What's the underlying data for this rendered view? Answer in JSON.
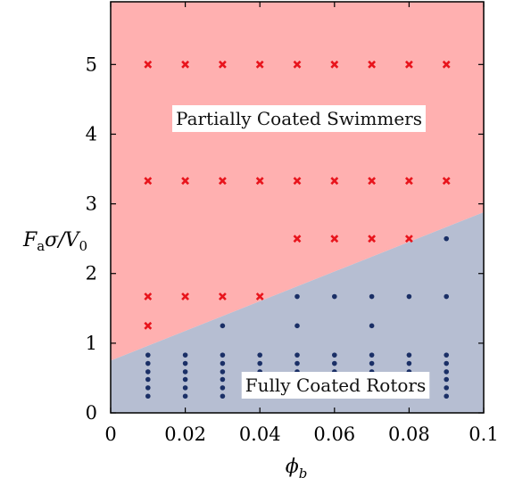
{
  "chart_data": {
    "type": "scatter",
    "title": "",
    "xlabel": "ϕb",
    "ylabel": "Faσ/V0",
    "xlim": [
      0,
      0.1
    ],
    "ylim": [
      0,
      5.9
    ],
    "xticks": [
      {
        "value": 0,
        "label": "0"
      },
      {
        "value": 0.02,
        "label": "0.02"
      },
      {
        "value": 0.04,
        "label": "0.04"
      },
      {
        "value": 0.06,
        "label": "0.06"
      },
      {
        "value": 0.08,
        "label": "0.08"
      },
      {
        "value": 0.1,
        "label": "0.1"
      }
    ],
    "yticks": [
      {
        "value": 0,
        "label": "0"
      },
      {
        "value": 1,
        "label": "1"
      },
      {
        "value": 2,
        "label": "2"
      },
      {
        "value": 3,
        "label": "3"
      },
      {
        "value": 4,
        "label": "4"
      },
      {
        "value": 5,
        "label": "5"
      }
    ],
    "boundary": {
      "x": [
        0,
        0.1
      ],
      "y": [
        0.75,
        2.88
      ]
    },
    "regions": [
      {
        "label": "Partially Coated Swimmers",
        "color": "#ffb0b0",
        "side": "above"
      },
      {
        "label": "Fully Coated Rotors",
        "color": "#b6bed2",
        "side": "below"
      }
    ],
    "series": [
      {
        "marker": "x",
        "color": "#e8141c",
        "points": [
          [
            0.01,
            5.0
          ],
          [
            0.02,
            5.0
          ],
          [
            0.03,
            5.0
          ],
          [
            0.04,
            5.0
          ],
          [
            0.05,
            5.0
          ],
          [
            0.06,
            5.0
          ],
          [
            0.07,
            5.0
          ],
          [
            0.08,
            5.0
          ],
          [
            0.09,
            5.0
          ],
          [
            0.01,
            3.33
          ],
          [
            0.02,
            3.33
          ],
          [
            0.03,
            3.33
          ],
          [
            0.04,
            3.33
          ],
          [
            0.05,
            3.33
          ],
          [
            0.06,
            3.33
          ],
          [
            0.07,
            3.33
          ],
          [
            0.08,
            3.33
          ],
          [
            0.09,
            3.33
          ],
          [
            0.05,
            2.5
          ],
          [
            0.06,
            2.5
          ],
          [
            0.07,
            2.5
          ],
          [
            0.08,
            2.5
          ],
          [
            0.01,
            1.67
          ],
          [
            0.02,
            1.67
          ],
          [
            0.03,
            1.67
          ],
          [
            0.04,
            1.67
          ],
          [
            0.01,
            1.25
          ]
        ]
      },
      {
        "marker": "dot",
        "color": "#1a2f66",
        "points": [
          [
            0.09,
            2.5
          ],
          [
            0.05,
            1.67
          ],
          [
            0.06,
            1.67
          ],
          [
            0.07,
            1.67
          ],
          [
            0.08,
            1.67
          ],
          [
            0.09,
            1.67
          ],
          [
            0.03,
            1.25
          ],
          [
            0.05,
            1.25
          ],
          [
            0.07,
            1.25
          ],
          [
            0.01,
            0.83
          ],
          [
            0.01,
            0.71
          ],
          [
            0.01,
            0.59
          ],
          [
            0.01,
            0.48
          ],
          [
            0.01,
            0.36
          ],
          [
            0.01,
            0.24
          ],
          [
            0.02,
            0.83
          ],
          [
            0.02,
            0.71
          ],
          [
            0.02,
            0.59
          ],
          [
            0.02,
            0.48
          ],
          [
            0.02,
            0.36
          ],
          [
            0.02,
            0.24
          ],
          [
            0.03,
            0.83
          ],
          [
            0.03,
            0.71
          ],
          [
            0.03,
            0.59
          ],
          [
            0.03,
            0.48
          ],
          [
            0.03,
            0.36
          ],
          [
            0.03,
            0.24
          ],
          [
            0.04,
            0.83
          ],
          [
            0.04,
            0.71
          ],
          [
            0.04,
            0.59
          ],
          [
            0.04,
            0.48
          ],
          [
            0.04,
            0.36
          ],
          [
            0.04,
            0.24
          ],
          [
            0.05,
            0.83
          ],
          [
            0.05,
            0.71
          ],
          [
            0.05,
            0.59
          ],
          [
            0.05,
            0.48
          ],
          [
            0.05,
            0.36
          ],
          [
            0.05,
            0.24
          ],
          [
            0.06,
            0.83
          ],
          [
            0.06,
            0.71
          ],
          [
            0.06,
            0.59
          ],
          [
            0.06,
            0.48
          ],
          [
            0.06,
            0.36
          ],
          [
            0.06,
            0.24
          ],
          [
            0.07,
            0.83
          ],
          [
            0.07,
            0.71
          ],
          [
            0.07,
            0.59
          ],
          [
            0.07,
            0.48
          ],
          [
            0.07,
            0.36
          ],
          [
            0.07,
            0.24
          ],
          [
            0.08,
            0.83
          ],
          [
            0.08,
            0.71
          ],
          [
            0.08,
            0.59
          ],
          [
            0.08,
            0.48
          ],
          [
            0.08,
            0.36
          ],
          [
            0.08,
            0.24
          ],
          [
            0.09,
            0.83
          ],
          [
            0.09,
            0.71
          ],
          [
            0.09,
            0.59
          ],
          [
            0.09,
            0.48
          ],
          [
            0.09,
            0.36
          ],
          [
            0.09,
            0.24
          ]
        ]
      }
    ]
  }
}
